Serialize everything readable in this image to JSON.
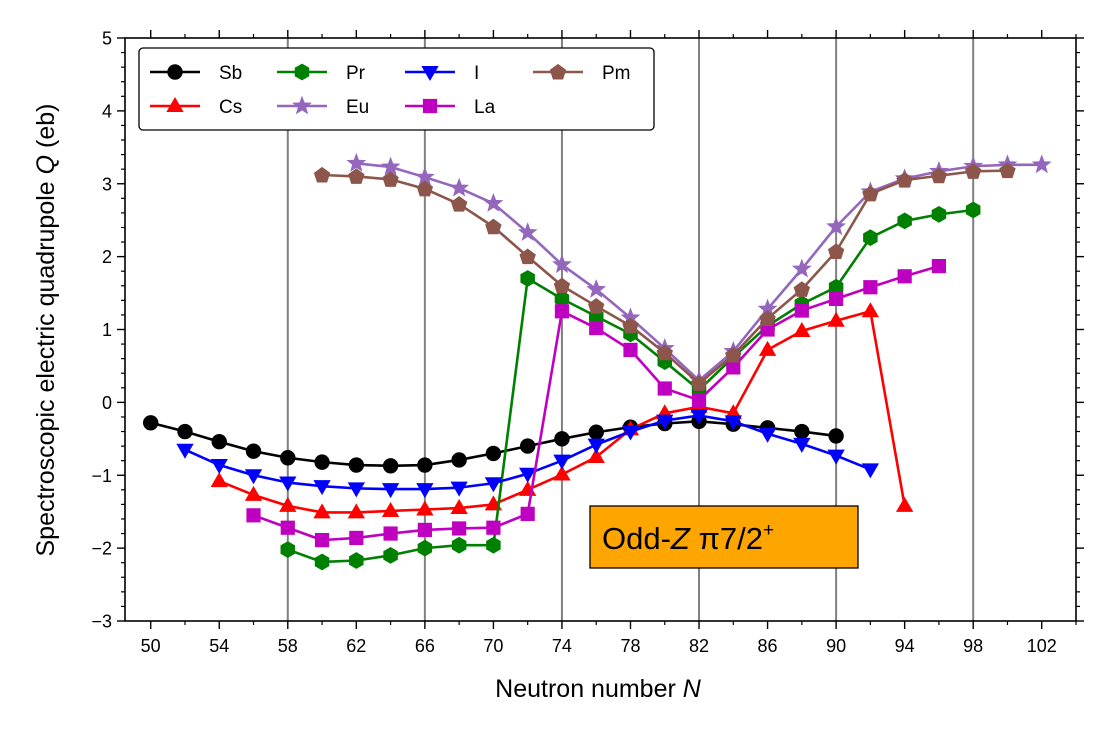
{
  "chart_data": {
    "type": "line",
    "title": "",
    "xlabel": "Neutron number",
    "xlabel_var": "N",
    "ylabel": "Spectroscopic electric quadrupole",
    "ylabel_var": "Q",
    "ylabel_unit": "(eb)",
    "xlim": [
      48.5,
      104
    ],
    "ylim": [
      -3,
      5
    ],
    "xticks": [
      50,
      54,
      58,
      62,
      66,
      70,
      74,
      78,
      82,
      86,
      90,
      94,
      98,
      102
    ],
    "yticks": [
      -3,
      -2,
      -1,
      0,
      1,
      2,
      3,
      4,
      5
    ],
    "ytick_labels": [
      "−3",
      "−2",
      "−1",
      "0",
      "1",
      "2",
      "3",
      "4",
      "5"
    ],
    "vlines": [
      58,
      66,
      74,
      82,
      90,
      98
    ],
    "annotation": {
      "prefix": "Odd-",
      "var": "Z",
      "label": " π7/2",
      "sup": "+",
      "color": "#FFA500"
    },
    "legend_position": "top-left",
    "series": [
      {
        "name": "Sb",
        "color": "#000000",
        "marker": "circle",
        "x": [
          50,
          52,
          54,
          56,
          58,
          60,
          62,
          64,
          66,
          68,
          70,
          72,
          74,
          76,
          78,
          80,
          82,
          84,
          86,
          88,
          90
        ],
        "y": [
          -0.28,
          -0.4,
          -0.54,
          -0.67,
          -0.76,
          -0.82,
          -0.86,
          -0.87,
          -0.86,
          -0.79,
          -0.7,
          -0.6,
          -0.5,
          -0.41,
          -0.34,
          -0.29,
          -0.26,
          -0.3,
          -0.35,
          -0.4,
          -0.46
        ]
      },
      {
        "name": "Cs",
        "color": "#FF0000",
        "marker": "triangle-up",
        "x": [
          54,
          56,
          58,
          60,
          62,
          64,
          66,
          68,
          70,
          72,
          74,
          76,
          78,
          80,
          82,
          84,
          86,
          88,
          90,
          92,
          94
        ],
        "y": [
          -1.08,
          -1.27,
          -1.42,
          -1.51,
          -1.51,
          -1.49,
          -1.47,
          -1.45,
          -1.4,
          -1.2,
          -0.99,
          -0.75,
          -0.37,
          -0.15,
          -0.06,
          -0.15,
          0.72,
          0.98,
          1.12,
          1.25,
          -1.42
        ]
      },
      {
        "name": "Pr",
        "color": "#008000",
        "marker": "hexagon",
        "x": [
          58,
          60,
          62,
          64,
          66,
          68,
          70,
          72,
          74,
          76,
          78,
          80,
          82,
          84,
          86,
          88,
          90,
          92,
          94,
          96,
          98
        ],
        "y": [
          -2.02,
          -2.19,
          -2.17,
          -2.1,
          -2.0,
          -1.96,
          -1.96,
          1.7,
          1.42,
          1.18,
          0.94,
          0.56,
          0.17,
          0.62,
          1.05,
          1.35,
          1.58,
          2.26,
          2.49,
          2.58,
          2.64
        ]
      },
      {
        "name": "Eu",
        "color": "#9467BD",
        "marker": "star",
        "x": [
          62,
          64,
          66,
          68,
          70,
          72,
          74,
          76,
          78,
          80,
          82,
          84,
          86,
          88,
          90,
          92,
          94,
          96,
          98,
          100,
          102
        ],
        "y": [
          3.28,
          3.23,
          3.09,
          2.94,
          2.73,
          2.33,
          1.89,
          1.55,
          1.16,
          0.74,
          0.3,
          0.7,
          1.28,
          1.83,
          2.41,
          2.89,
          3.07,
          3.17,
          3.24,
          3.26,
          3.26
        ]
      },
      {
        "name": "I",
        "color": "#0000FF",
        "marker": "triangle-down",
        "x": [
          52,
          54,
          56,
          58,
          60,
          62,
          64,
          66,
          68,
          70,
          72,
          74,
          76,
          78,
          80,
          82,
          84,
          86,
          88,
          90,
          92
        ],
        "y": [
          -0.65,
          -0.86,
          -1.0,
          -1.1,
          -1.15,
          -1.18,
          -1.19,
          -1.19,
          -1.17,
          -1.11,
          -0.98,
          -0.8,
          -0.58,
          -0.4,
          -0.25,
          -0.18,
          -0.26,
          -0.43,
          -0.57,
          -0.73,
          -0.92
        ]
      },
      {
        "name": "La",
        "color": "#C000C0",
        "marker": "square",
        "x": [
          56,
          58,
          60,
          62,
          64,
          66,
          68,
          70,
          72,
          74,
          76,
          78,
          80,
          82,
          84,
          86,
          88,
          90,
          92,
          94,
          96
        ],
        "y": [
          -1.55,
          -1.72,
          -1.89,
          -1.86,
          -1.8,
          -1.75,
          -1.73,
          -1.72,
          -1.53,
          1.25,
          1.02,
          0.72,
          0.19,
          0.03,
          0.48,
          1.0,
          1.26,
          1.42,
          1.58,
          1.73,
          1.87
        ]
      },
      {
        "name": "Pm",
        "color": "#8C564B",
        "marker": "pentagon",
        "x": [
          60,
          62,
          64,
          66,
          68,
          70,
          72,
          74,
          76,
          78,
          80,
          82,
          84,
          86,
          88,
          90,
          92,
          94,
          96,
          98,
          100
        ],
        "y": [
          3.12,
          3.1,
          3.06,
          2.93,
          2.72,
          2.41,
          2.0,
          1.6,
          1.32,
          1.05,
          0.68,
          0.26,
          0.65,
          1.15,
          1.55,
          2.07,
          2.86,
          3.05,
          3.11,
          3.17,
          3.18
        ]
      }
    ]
  }
}
